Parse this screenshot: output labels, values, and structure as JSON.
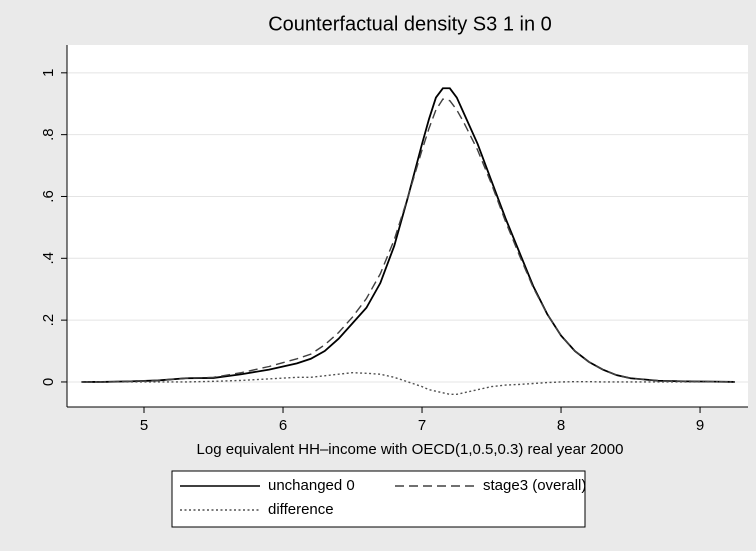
{
  "chart_data": {
    "type": "line",
    "title": "Counterfactual density S3 1 in 0",
    "x_label": "Log equivalent HH–income with OECD(1,0.5,0.3) real year 2000",
    "x": [
      4.55,
      4.7,
      4.9,
      5.1,
      5.3,
      5.5,
      5.7,
      5.9,
      6.1,
      6.2,
      6.3,
      6.4,
      6.5,
      6.6,
      6.7,
      6.8,
      6.9,
      7.0,
      7.05,
      7.1,
      7.15,
      7.2,
      7.25,
      7.3,
      7.4,
      7.5,
      7.6,
      7.7,
      7.8,
      7.9,
      8.0,
      8.1,
      8.2,
      8.3,
      8.4,
      8.5,
      8.7,
      8.9,
      9.1,
      9.25
    ],
    "series": [
      {
        "name": "unchanged 0",
        "color": "#000000",
        "style": "solid",
        "values": [
          0,
          0,
          0.002,
          0.005,
          0.012,
          0.013,
          0.025,
          0.04,
          0.06,
          0.075,
          0.1,
          0.14,
          0.19,
          0.24,
          0.32,
          0.44,
          0.6,
          0.77,
          0.85,
          0.92,
          0.95,
          0.95,
          0.92,
          0.87,
          0.77,
          0.65,
          0.53,
          0.42,
          0.31,
          0.22,
          0.15,
          0.1,
          0.065,
          0.04,
          0.022,
          0.012,
          0.004,
          0.002,
          0.001,
          0
        ]
      },
      {
        "name": "stage3 (overall)",
        "color": "#404040",
        "style": "dashed",
        "values": [
          0,
          0,
          0.002,
          0.005,
          0.012,
          0.015,
          0.03,
          0.05,
          0.075,
          0.09,
          0.12,
          0.16,
          0.21,
          0.27,
          0.35,
          0.46,
          0.6,
          0.75,
          0.82,
          0.88,
          0.915,
          0.91,
          0.88,
          0.84,
          0.75,
          0.64,
          0.52,
          0.41,
          0.305,
          0.22,
          0.15,
          0.1,
          0.065,
          0.04,
          0.022,
          0.012,
          0.004,
          0.002,
          0.001,
          0
        ]
      },
      {
        "name": "difference",
        "color": "#505050",
        "style": "dotted",
        "values": [
          0,
          0,
          0,
          0,
          0,
          0.002,
          0.005,
          0.01,
          0.015,
          0.015,
          0.02,
          0.025,
          0.03,
          0.028,
          0.025,
          0.015,
          0,
          -0.015,
          -0.025,
          -0.03,
          -0.035,
          -0.04,
          -0.04,
          -0.035,
          -0.025,
          -0.015,
          -0.01,
          -0.008,
          -0.005,
          -0.002,
          0,
          0.001,
          0.001,
          0,
          0,
          0,
          0,
          0,
          0,
          0
        ]
      }
    ],
    "xlim": [
      4.446,
      9.345
    ],
    "ylim": [
      -0.081,
      1.09
    ],
    "xticks": [
      5,
      6,
      7,
      8,
      9
    ],
    "yticks": [
      0,
      {
        "value": 0.2,
        "label": ".2"
      },
      {
        "value": 0.4,
        "label": ".4"
      },
      {
        "value": 0.6,
        "label": ".6"
      },
      {
        "value": 0.8,
        "label": ".8"
      },
      1
    ],
    "grid": true,
    "legend": "bottom"
  }
}
